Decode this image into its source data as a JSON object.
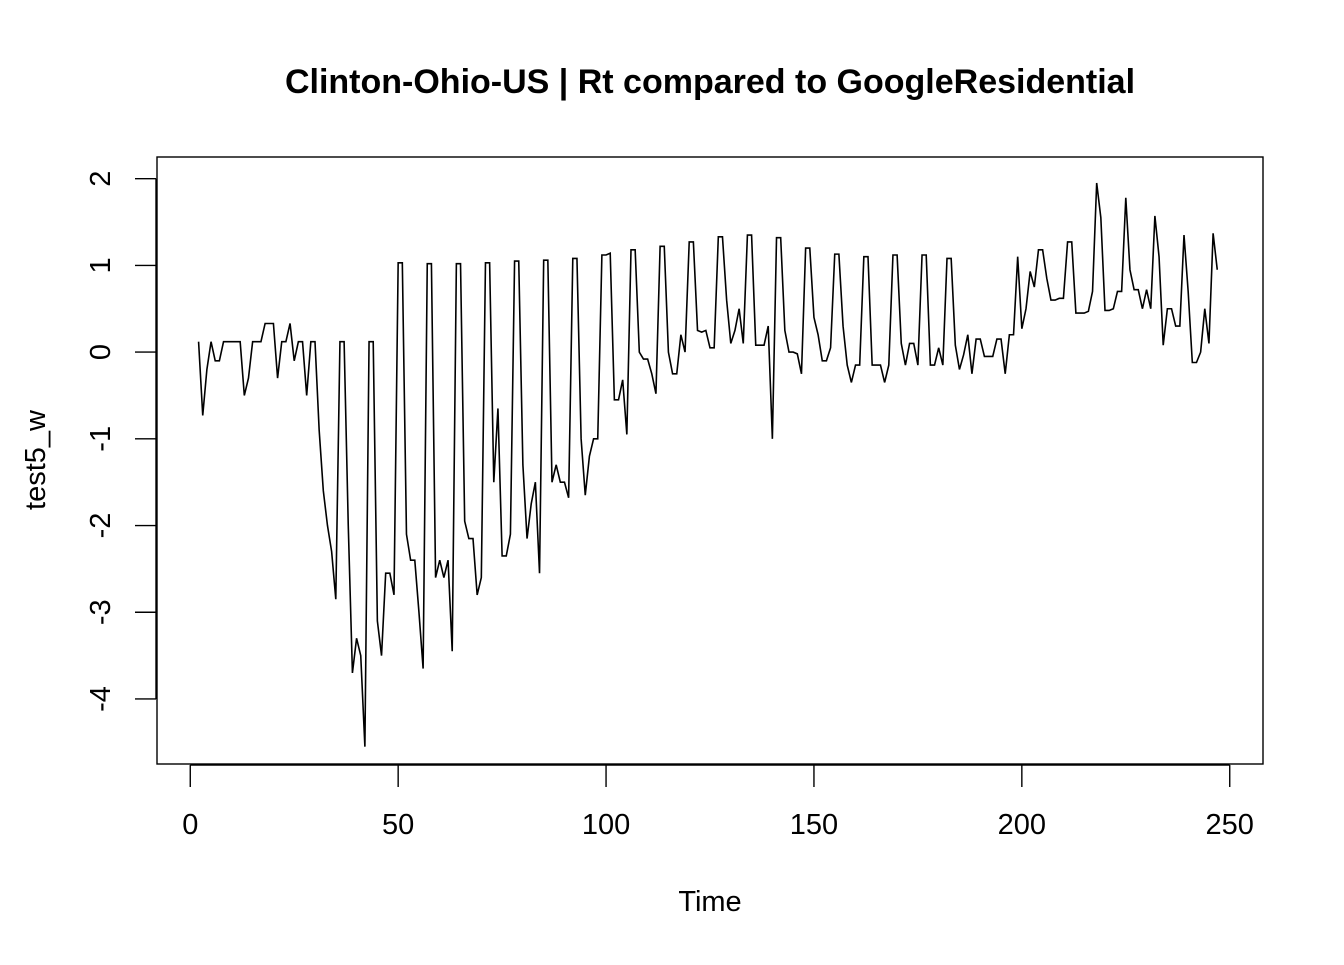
{
  "chart_data": {
    "type": "line",
    "title": "Clinton-Ohio-US | Rt compared to GoogleResidential",
    "xlabel": "Time",
    "ylabel": "test5_w",
    "xlim": [
      -8,
      258
    ],
    "ylim": [
      -4.75,
      2.25
    ],
    "xticks": [
      0,
      50,
      100,
      150,
      200,
      250
    ],
    "yticks": [
      -4,
      -3,
      -2,
      -1,
      0,
      1,
      2
    ],
    "grid": false,
    "line_color": "#000000",
    "series": [
      {
        "x_start": 2,
        "x_step": 1,
        "values": [
          0.12,
          -0.73,
          -0.2,
          0.12,
          -0.1,
          -0.1,
          0.12,
          0.12,
          0.12,
          0.12,
          0.12,
          -0.5,
          -0.3,
          0.12,
          0.12,
          0.12,
          0.33,
          0.33,
          0.33,
          -0.3,
          0.12,
          0.12,
          0.33,
          -0.1,
          0.12,
          0.12,
          -0.5,
          0.12,
          0.12,
          -0.9,
          -1.6,
          -2.0,
          -2.3,
          -2.85,
          0.12,
          0.12,
          -2.0,
          -3.7,
          -3.3,
          -3.5,
          -4.55,
          0.12,
          0.12,
          -3.1,
          -3.5,
          -2.55,
          -2.55,
          -2.8,
          1.03,
          1.03,
          -2.1,
          -2.4,
          -2.4,
          -3.0,
          -3.65,
          1.02,
          1.02,
          -2.6,
          -2.4,
          -2.6,
          -2.4,
          -3.45,
          1.02,
          1.02,
          -1.95,
          -2.15,
          -2.15,
          -2.8,
          -2.6,
          1.03,
          1.03,
          -1.5,
          -0.65,
          -2.35,
          -2.35,
          -2.1,
          1.05,
          1.05,
          -1.3,
          -2.15,
          -1.75,
          -1.5,
          -2.55,
          1.06,
          1.06,
          -1.5,
          -1.3,
          -1.5,
          -1.5,
          -1.68,
          1.08,
          1.08,
          -1.0,
          -1.65,
          -1.2,
          -1.0,
          -1.0,
          1.12,
          1.12,
          1.14,
          -0.55,
          -0.55,
          -0.32,
          -0.95,
          1.18,
          1.18,
          0.0,
          -0.08,
          -0.08,
          -0.25,
          -0.48,
          1.22,
          1.22,
          0.0,
          -0.25,
          -0.25,
          0.2,
          0.0,
          1.27,
          1.27,
          0.25,
          0.23,
          0.25,
          0.05,
          0.05,
          1.33,
          1.33,
          0.6,
          0.1,
          0.25,
          0.5,
          0.1,
          1.35,
          1.35,
          0.08,
          0.08,
          0.08,
          0.3,
          -1.0,
          1.32,
          1.32,
          0.25,
          0.0,
          0.0,
          -0.02,
          -0.25,
          1.2,
          1.2,
          0.4,
          0.2,
          -0.1,
          -0.1,
          0.05,
          1.13,
          1.13,
          0.3,
          -0.15,
          -0.35,
          -0.15,
          -0.15,
          1.1,
          1.1,
          -0.15,
          -0.15,
          -0.15,
          -0.35,
          -0.15,
          1.12,
          1.12,
          0.1,
          -0.15,
          0.1,
          0.1,
          -0.15,
          1.12,
          1.12,
          -0.15,
          -0.15,
          0.05,
          -0.15,
          1.08,
          1.08,
          0.08,
          -0.2,
          -0.03,
          0.2,
          -0.25,
          0.15,
          0.15,
          -0.05,
          -0.05,
          -0.05,
          0.15,
          0.15,
          -0.25,
          0.2,
          0.2,
          1.1,
          0.27,
          0.5,
          0.93,
          0.75,
          1.18,
          1.18,
          0.85,
          0.6,
          0.6,
          0.62,
          0.62,
          1.27,
          1.27,
          0.45,
          0.45,
          0.45,
          0.47,
          0.7,
          1.95,
          1.55,
          0.48,
          0.48,
          0.5,
          0.7,
          0.7,
          1.78,
          0.95,
          0.72,
          0.72,
          0.5,
          0.72,
          0.5,
          1.57,
          1.1,
          0.08,
          0.5,
          0.5,
          0.3,
          0.3,
          1.35,
          0.7,
          -0.12,
          -0.12,
          0.0,
          0.5,
          0.1,
          1.37,
          0.95
        ]
      }
    ]
  }
}
